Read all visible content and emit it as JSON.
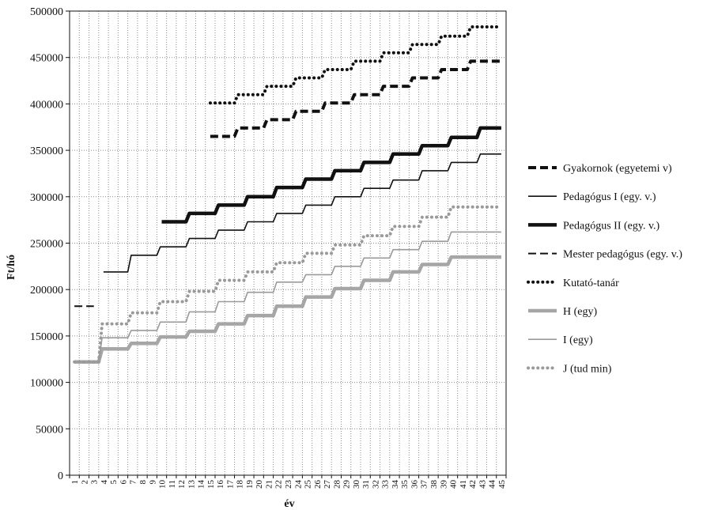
{
  "chart_data": {
    "type": "line",
    "title": "",
    "xlabel": "év",
    "ylabel": "Ft/hó",
    "ylim": [
      0,
      500000
    ],
    "yticks": [
      0,
      50000,
      100000,
      150000,
      200000,
      250000,
      300000,
      350000,
      400000,
      450000,
      500000
    ],
    "x": [
      1,
      2,
      3,
      4,
      5,
      6,
      7,
      8,
      9,
      10,
      11,
      12,
      13,
      14,
      15,
      16,
      17,
      18,
      19,
      20,
      21,
      22,
      23,
      24,
      25,
      26,
      27,
      28,
      29,
      30,
      31,
      32,
      33,
      34,
      35,
      36,
      37,
      38,
      39,
      40,
      41,
      42,
      43,
      44,
      45
    ],
    "grid": "on",
    "legend_position": "right",
    "series": [
      {
        "name": "Gyakornok (egyetemi v)",
        "color": "#111111",
        "style": "thick-dash",
        "values": [
          null,
          null,
          null,
          null,
          null,
          null,
          null,
          null,
          null,
          null,
          null,
          null,
          null,
          null,
          365000,
          365000,
          365000,
          374000,
          374000,
          374000,
          383000,
          383000,
          383000,
          392000,
          392000,
          392000,
          401000,
          401000,
          401000,
          410000,
          410000,
          410000,
          419000,
          419000,
          419000,
          428000,
          428000,
          428000,
          437000,
          437000,
          437000,
          446000,
          446000,
          446000,
          446000
        ]
      },
      {
        "name": "Pedagógus I (egy. v.)",
        "color": "#111111",
        "style": "thin-solid",
        "values": [
          null,
          null,
          null,
          219000,
          219000,
          219000,
          237000,
          237000,
          237000,
          246000,
          246000,
          246000,
          255000,
          255000,
          255000,
          264000,
          264000,
          264000,
          273000,
          273000,
          273000,
          282000,
          282000,
          282000,
          291000,
          291000,
          291000,
          300000,
          300000,
          300000,
          309000,
          309000,
          309000,
          318000,
          318000,
          318000,
          328000,
          328000,
          328000,
          337000,
          337000,
          337000,
          346000,
          346000,
          346000
        ]
      },
      {
        "name": "Pedagógus II (egy. v.)",
        "color": "#111111",
        "style": "thick-solid",
        "values": [
          null,
          null,
          null,
          null,
          null,
          null,
          null,
          null,
          null,
          273000,
          273000,
          273000,
          282000,
          282000,
          282000,
          291000,
          291000,
          291000,
          300000,
          300000,
          300000,
          310000,
          310000,
          310000,
          319000,
          319000,
          319000,
          328000,
          328000,
          328000,
          337000,
          337000,
          337000,
          346000,
          346000,
          346000,
          355000,
          355000,
          355000,
          364000,
          364000,
          364000,
          374000,
          374000,
          374000
        ]
      },
      {
        "name": "Mester pedagógus (egy. v.)",
        "color": "#111111",
        "style": "thin-dash",
        "values": [
          182000,
          182000,
          182000,
          null,
          null,
          null,
          null,
          null,
          null,
          null,
          null,
          null,
          null,
          null,
          null,
          null,
          null,
          null,
          null,
          null,
          null,
          null,
          null,
          null,
          null,
          null,
          null,
          null,
          null,
          null,
          null,
          null,
          null,
          null,
          null,
          null,
          null,
          null,
          null,
          null,
          null,
          null,
          null,
          null,
          null
        ]
      },
      {
        "name": "Kutató-tanár",
        "color": "#111111",
        "style": "dotted",
        "values": [
          null,
          null,
          null,
          null,
          null,
          null,
          null,
          null,
          null,
          null,
          null,
          null,
          null,
          null,
          401000,
          401000,
          401000,
          410000,
          410000,
          410000,
          419000,
          419000,
          419000,
          428000,
          428000,
          428000,
          437000,
          437000,
          437000,
          446000,
          446000,
          446000,
          455000,
          455000,
          455000,
          464000,
          464000,
          464000,
          473000,
          473000,
          473000,
          483000,
          483000,
          483000,
          483000
        ]
      },
      {
        "name": "H (egy)",
        "color": "#a6a6a6",
        "style": "thick-solid",
        "values": [
          122000,
          122000,
          122000,
          136000,
          136000,
          136000,
          142000,
          142000,
          142000,
          149000,
          149000,
          149000,
          155000,
          155000,
          155000,
          163000,
          163000,
          163000,
          172000,
          172000,
          172000,
          182000,
          182000,
          182000,
          192000,
          192000,
          192000,
          201000,
          201000,
          201000,
          210000,
          210000,
          210000,
          219000,
          219000,
          219000,
          227000,
          227000,
          227000,
          235000,
          235000,
          235000,
          235000,
          235000,
          235000
        ]
      },
      {
        "name": "I (egy)",
        "color": "#9a9a9a",
        "style": "thin-solid",
        "values": [
          122000,
          122000,
          122000,
          148000,
          148000,
          148000,
          156000,
          156000,
          156000,
          165000,
          165000,
          165000,
          176000,
          176000,
          176000,
          187000,
          187000,
          187000,
          197000,
          197000,
          197000,
          208000,
          208000,
          208000,
          216000,
          216000,
          216000,
          225000,
          225000,
          225000,
          234000,
          234000,
          234000,
          243000,
          243000,
          243000,
          252000,
          252000,
          252000,
          262000,
          262000,
          262000,
          262000,
          262000,
          262000
        ]
      },
      {
        "name": "J (tud min)",
        "color": "#9a9a9a",
        "style": "dotted",
        "values": [
          122000,
          122000,
          122000,
          163000,
          163000,
          163000,
          175000,
          175000,
          175000,
          187000,
          187000,
          187000,
          198000,
          198000,
          198000,
          210000,
          210000,
          210000,
          219000,
          219000,
          219000,
          229000,
          229000,
          229000,
          239000,
          239000,
          239000,
          248000,
          248000,
          248000,
          258000,
          258000,
          258000,
          268000,
          268000,
          268000,
          278000,
          278000,
          278000,
          289000,
          289000,
          289000,
          289000,
          289000,
          289000
        ]
      }
    ]
  }
}
